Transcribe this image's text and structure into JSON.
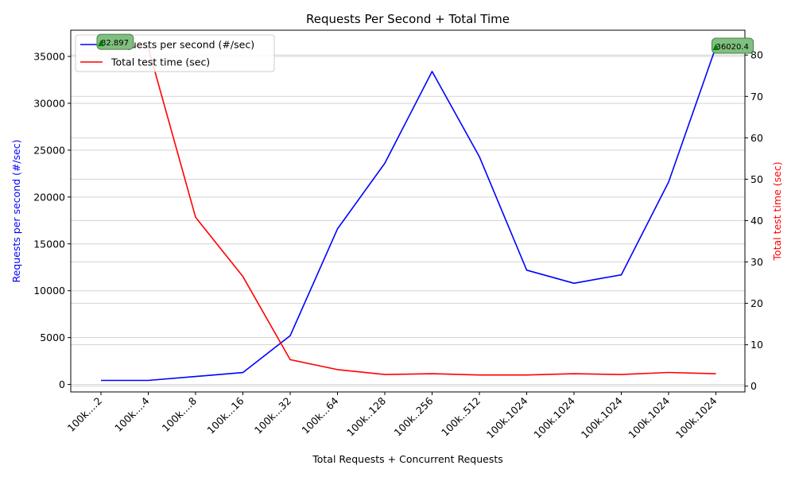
{
  "chart_data": {
    "type": "line",
    "title": "Requests Per Second + Total Time",
    "xlabel": "Total Requests + Concurrent Requests",
    "ylabel_left": "Requests per second (#/sec)",
    "ylabel_right": "Total test time (sec)",
    "categories": [
      "100k....2",
      "100k....4",
      "100k....8",
      "100k...16",
      "100k...32",
      "100k...64",
      "100k..128",
      "100k..256",
      "100k..512",
      "100k.1024",
      "100k.1024",
      "100k.1024",
      "100k.1024",
      "100k.1024"
    ],
    "series": [
      {
        "name": "Requests per second (#/sec)",
        "axis": "left",
        "color": "#0000ff",
        "values": [
          430,
          430,
          850,
          1270,
          5200,
          16600,
          23600,
          33400,
          24300,
          12200,
          10800,
          11700,
          21600,
          36020.4
        ]
      },
      {
        "name": "Total test time (sec)",
        "axis": "right",
        "color": "#ff0000",
        "values": [
          82.897,
          81.8,
          40.8,
          26.5,
          6.4,
          4.0,
          2.8,
          3.0,
          2.7,
          2.7,
          3.0,
          2.8,
          3.3,
          3.0
        ]
      }
    ],
    "ylim_left": [
      -800,
      37800
    ],
    "yticks_left": [
      0,
      5000,
      10000,
      15000,
      20000,
      25000,
      30000,
      35000
    ],
    "ylim_right": [
      -1.4,
      86.0
    ],
    "yticks_right": [
      0,
      10,
      20,
      30,
      40,
      50,
      60,
      70,
      80
    ],
    "grid": "horizontal",
    "legend_position": "top-left",
    "annotations": [
      {
        "text": "82.897",
        "index": 0,
        "series": "Total test time (sec)"
      },
      {
        "text": "36020.4",
        "index": 13,
        "series": "Requests per second (#/sec)"
      }
    ],
    "annotation_color": "#008000",
    "annotation_box_color": "#7fbf7f"
  }
}
